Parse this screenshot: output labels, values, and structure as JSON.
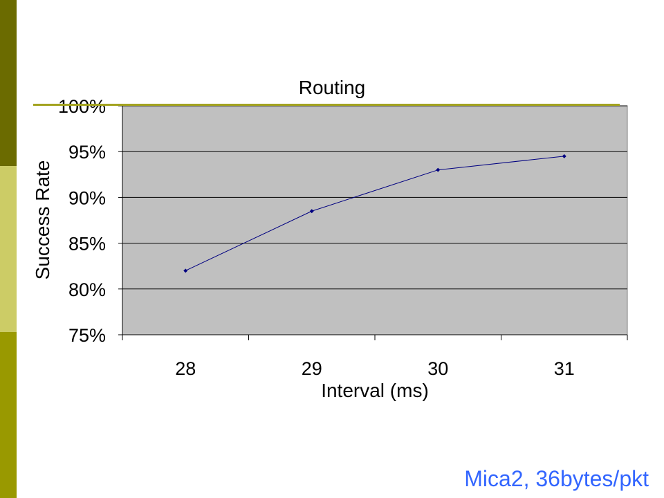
{
  "colors": {
    "stripe_top": "#6b6b00",
    "stripe_middle": "#cccc66",
    "stripe_bottom": "#999900",
    "title_rule": "#a3a31f",
    "plot_background": "#c0c0c0",
    "series_line": "#000080",
    "caption": "#3366ff"
  },
  "caption": "Mica2, 36bytes/pkt",
  "chart_data": {
    "type": "line",
    "title": "Routing",
    "xlabel": "Interval (ms)",
    "ylabel": "Success Rate",
    "categories": [
      "28",
      "29",
      "30",
      "31"
    ],
    "series": [
      {
        "values": [
          0.82,
          0.885,
          0.93,
          0.945
        ]
      }
    ],
    "ylim": [
      0.75,
      1.0
    ],
    "y_ticks": [
      "75%",
      "80%",
      "85%",
      "90%",
      "95%",
      "100%"
    ],
    "y_tick_values": [
      0.75,
      0.8,
      0.85,
      0.9,
      0.95,
      1.0
    ],
    "grid": "horizontal",
    "legend": "none"
  }
}
